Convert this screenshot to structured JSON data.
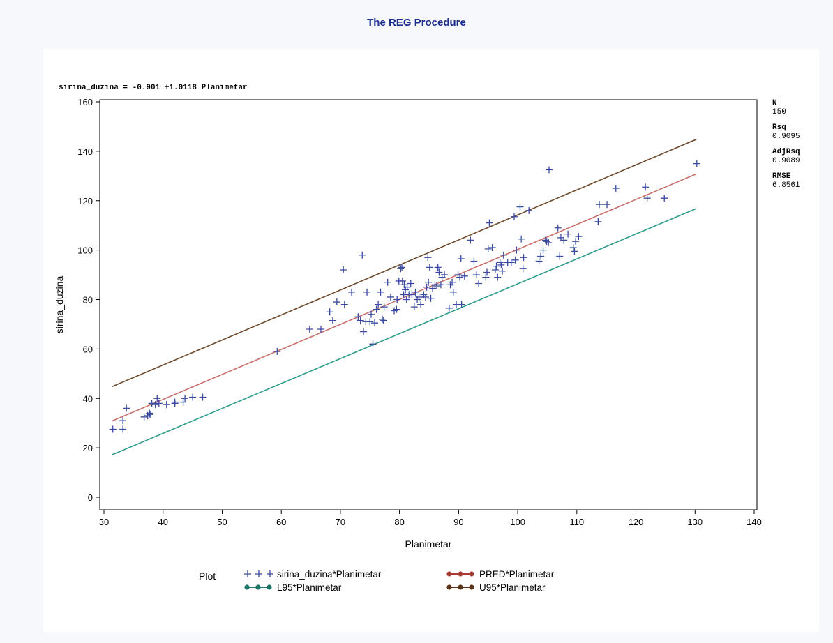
{
  "page_title": "The REG Procedure",
  "colors": {
    "title": "#1a2d8c",
    "points": "#3a4aa0",
    "pred": "#c86f6a",
    "l95": "#2e9c8b",
    "u95": "#6e4a2c",
    "pred_marker": "#a83a32",
    "l95_marker": "#1c7466",
    "u95_marker": "#5a3418"
  },
  "chart_data": {
    "type": "scatter",
    "title": "The REG Procedure",
    "equation": "sirina_duzina = -0.901 +1.0118 Planimetar",
    "xlabel": "Planimetar",
    "ylabel": "sirina_duzina",
    "xlim": [
      30,
      140
    ],
    "ylim": [
      0,
      160
    ],
    "xticks": [
      30,
      40,
      50,
      60,
      70,
      80,
      90,
      100,
      110,
      120,
      130,
      140
    ],
    "yticks": [
      0,
      20,
      40,
      60,
      80,
      100,
      120,
      140,
      160
    ],
    "stats": [
      {
        "label": "N",
        "value": "150"
      },
      {
        "label": "Rsq",
        "value": "0.9095"
      },
      {
        "label": "AdjRsq",
        "value": "0.9089"
      },
      {
        "label": "RMSE",
        "value": "6.8561"
      }
    ],
    "legend": {
      "title": "Plot",
      "position": "bottom",
      "entries": [
        {
          "name": "sirina_duzina*Planimetar",
          "style": "plus",
          "color": "#3a4aa0"
        },
        {
          "name": "PRED*Planimetar",
          "style": "line-dot",
          "color": "#a83a32"
        },
        {
          "name": "L95*Planimetar",
          "style": "line-dot",
          "color": "#1c7466"
        },
        {
          "name": "U95*Planimetar",
          "style": "line-dot",
          "color": "#5a3418"
        }
      ]
    },
    "lines": [
      {
        "name": "PRED*Planimetar",
        "color": "#c86f6a",
        "x": [
          31.4,
          130.2
        ],
        "y": [
          30.9,
          130.8
        ]
      },
      {
        "name": "U95*Planimetar",
        "color": "#6e4a2c",
        "x": [
          31.4,
          130.2
        ],
        "y": [
          44.8,
          144.8
        ]
      },
      {
        "name": "L95*Planimetar",
        "color": "#2e9c8b",
        "x": [
          31.4,
          130.2
        ],
        "y": [
          17.2,
          116.8
        ]
      }
    ],
    "points": [
      [
        31.5,
        27.5
      ],
      [
        33.2,
        27.5
      ],
      [
        33.2,
        31
      ],
      [
        33.8,
        36
      ],
      [
        36.8,
        32.5
      ],
      [
        37.4,
        33
      ],
      [
        37.7,
        34
      ],
      [
        37.8,
        33.5
      ],
      [
        38.1,
        38
      ],
      [
        38.7,
        37.5
      ],
      [
        39,
        40
      ],
      [
        39.3,
        38
      ],
      [
        40.6,
        37.5
      ],
      [
        42,
        38.5
      ],
      [
        42,
        38
      ],
      [
        43.4,
        38.5
      ],
      [
        43.7,
        40
      ],
      [
        45,
        40.5
      ],
      [
        46.7,
        40.5
      ],
      [
        59.3,
        59
      ],
      [
        64.8,
        68
      ],
      [
        66.7,
        68
      ],
      [
        68.2,
        75
      ],
      [
        68.7,
        71.5
      ],
      [
        69.4,
        79
      ],
      [
        70.5,
        92
      ],
      [
        70.7,
        78
      ],
      [
        71.9,
        83
      ],
      [
        73,
        73
      ],
      [
        73.4,
        71.5
      ],
      [
        73.7,
        98
      ],
      [
        73.9,
        67
      ],
      [
        74.3,
        71
      ],
      [
        74.5,
        83
      ],
      [
        75,
        71
      ],
      [
        75.2,
        74
      ],
      [
        75.5,
        62
      ],
      [
        75.8,
        70.5
      ],
      [
        76.1,
        76
      ],
      [
        76.4,
        78
      ],
      [
        76.8,
        83
      ],
      [
        77.1,
        72
      ],
      [
        77.4,
        77
      ],
      [
        77.3,
        71.5
      ],
      [
        78,
        87
      ],
      [
        78.5,
        81
      ],
      [
        79.1,
        75.5
      ],
      [
        79.5,
        76
      ],
      [
        79.6,
        80
      ],
      [
        79.9,
        87.5
      ],
      [
        80.2,
        92.5
      ],
      [
        80.4,
        93
      ],
      [
        80.5,
        87.5
      ],
      [
        80.7,
        82
      ],
      [
        80.8,
        86
      ],
      [
        81,
        84
      ],
      [
        81.2,
        80
      ],
      [
        81.3,
        85
      ],
      [
        81.6,
        82
      ],
      [
        81.9,
        86.5
      ],
      [
        82.1,
        82
      ],
      [
        82.5,
        77
      ],
      [
        82.7,
        83
      ],
      [
        83,
        80
      ],
      [
        83.3,
        81
      ],
      [
        83.6,
        78
      ],
      [
        84.1,
        82
      ],
      [
        84.4,
        81
      ],
      [
        84.6,
        85
      ],
      [
        84.9,
        87
      ],
      [
        85.1,
        93
      ],
      [
        84.8,
        97
      ],
      [
        85.3,
        80.5
      ],
      [
        85.6,
        84.5
      ],
      [
        86,
        86
      ],
      [
        86.3,
        85.5
      ],
      [
        86.5,
        93
      ],
      [
        86.7,
        91
      ],
      [
        87,
        86
      ],
      [
        87.2,
        89
      ],
      [
        87.6,
        90
      ],
      [
        88.4,
        76.5
      ],
      [
        88.6,
        86
      ],
      [
        88.9,
        87
      ],
      [
        89.1,
        83
      ],
      [
        89.6,
        78
      ],
      [
        89.9,
        90
      ],
      [
        90.2,
        89
      ],
      [
        90.4,
        96.5
      ],
      [
        90.5,
        78
      ],
      [
        91,
        89.5
      ],
      [
        92,
        104
      ],
      [
        92.6,
        95.5
      ],
      [
        93,
        90
      ],
      [
        93.4,
        86.5
      ],
      [
        94.6,
        89
      ],
      [
        94.8,
        91
      ],
      [
        95,
        100.5
      ],
      [
        95.2,
        111
      ],
      [
        95.7,
        101
      ],
      [
        96.2,
        92
      ],
      [
        96.4,
        93.5
      ],
      [
        96.6,
        89
      ],
      [
        97,
        95
      ],
      [
        97.2,
        94
      ],
      [
        97.4,
        91.5
      ],
      [
        97.6,
        98
      ],
      [
        98.3,
        95
      ],
      [
        98.9,
        95
      ],
      [
        99.4,
        113.5
      ],
      [
        99.6,
        96
      ],
      [
        99.8,
        100
      ],
      [
        100.4,
        117.5
      ],
      [
        100.6,
        104.5
      ],
      [
        100.9,
        92.5
      ],
      [
        101,
        97
      ],
      [
        101.9,
        116
      ],
      [
        103.6,
        95.5
      ],
      [
        103.9,
        97.5
      ],
      [
        104.3,
        100
      ],
      [
        104.7,
        104
      ],
      [
        104.9,
        103.5
      ],
      [
        105.2,
        103
      ],
      [
        105.3,
        132.5
      ],
      [
        106.8,
        109
      ],
      [
        107.1,
        97.5
      ],
      [
        107.3,
        105
      ],
      [
        107.8,
        104
      ],
      [
        108.5,
        106.5
      ],
      [
        109.4,
        101
      ],
      [
        109.6,
        99.5
      ],
      [
        109.8,
        103.5
      ],
      [
        110.3,
        105.5
      ],
      [
        113.6,
        111.5
      ],
      [
        113.8,
        118.5
      ],
      [
        115.1,
        118.5
      ],
      [
        116.6,
        125
      ],
      [
        121.6,
        125.5
      ],
      [
        121.9,
        121
      ],
      [
        124.8,
        121
      ],
      [
        130.3,
        135
      ]
    ]
  }
}
